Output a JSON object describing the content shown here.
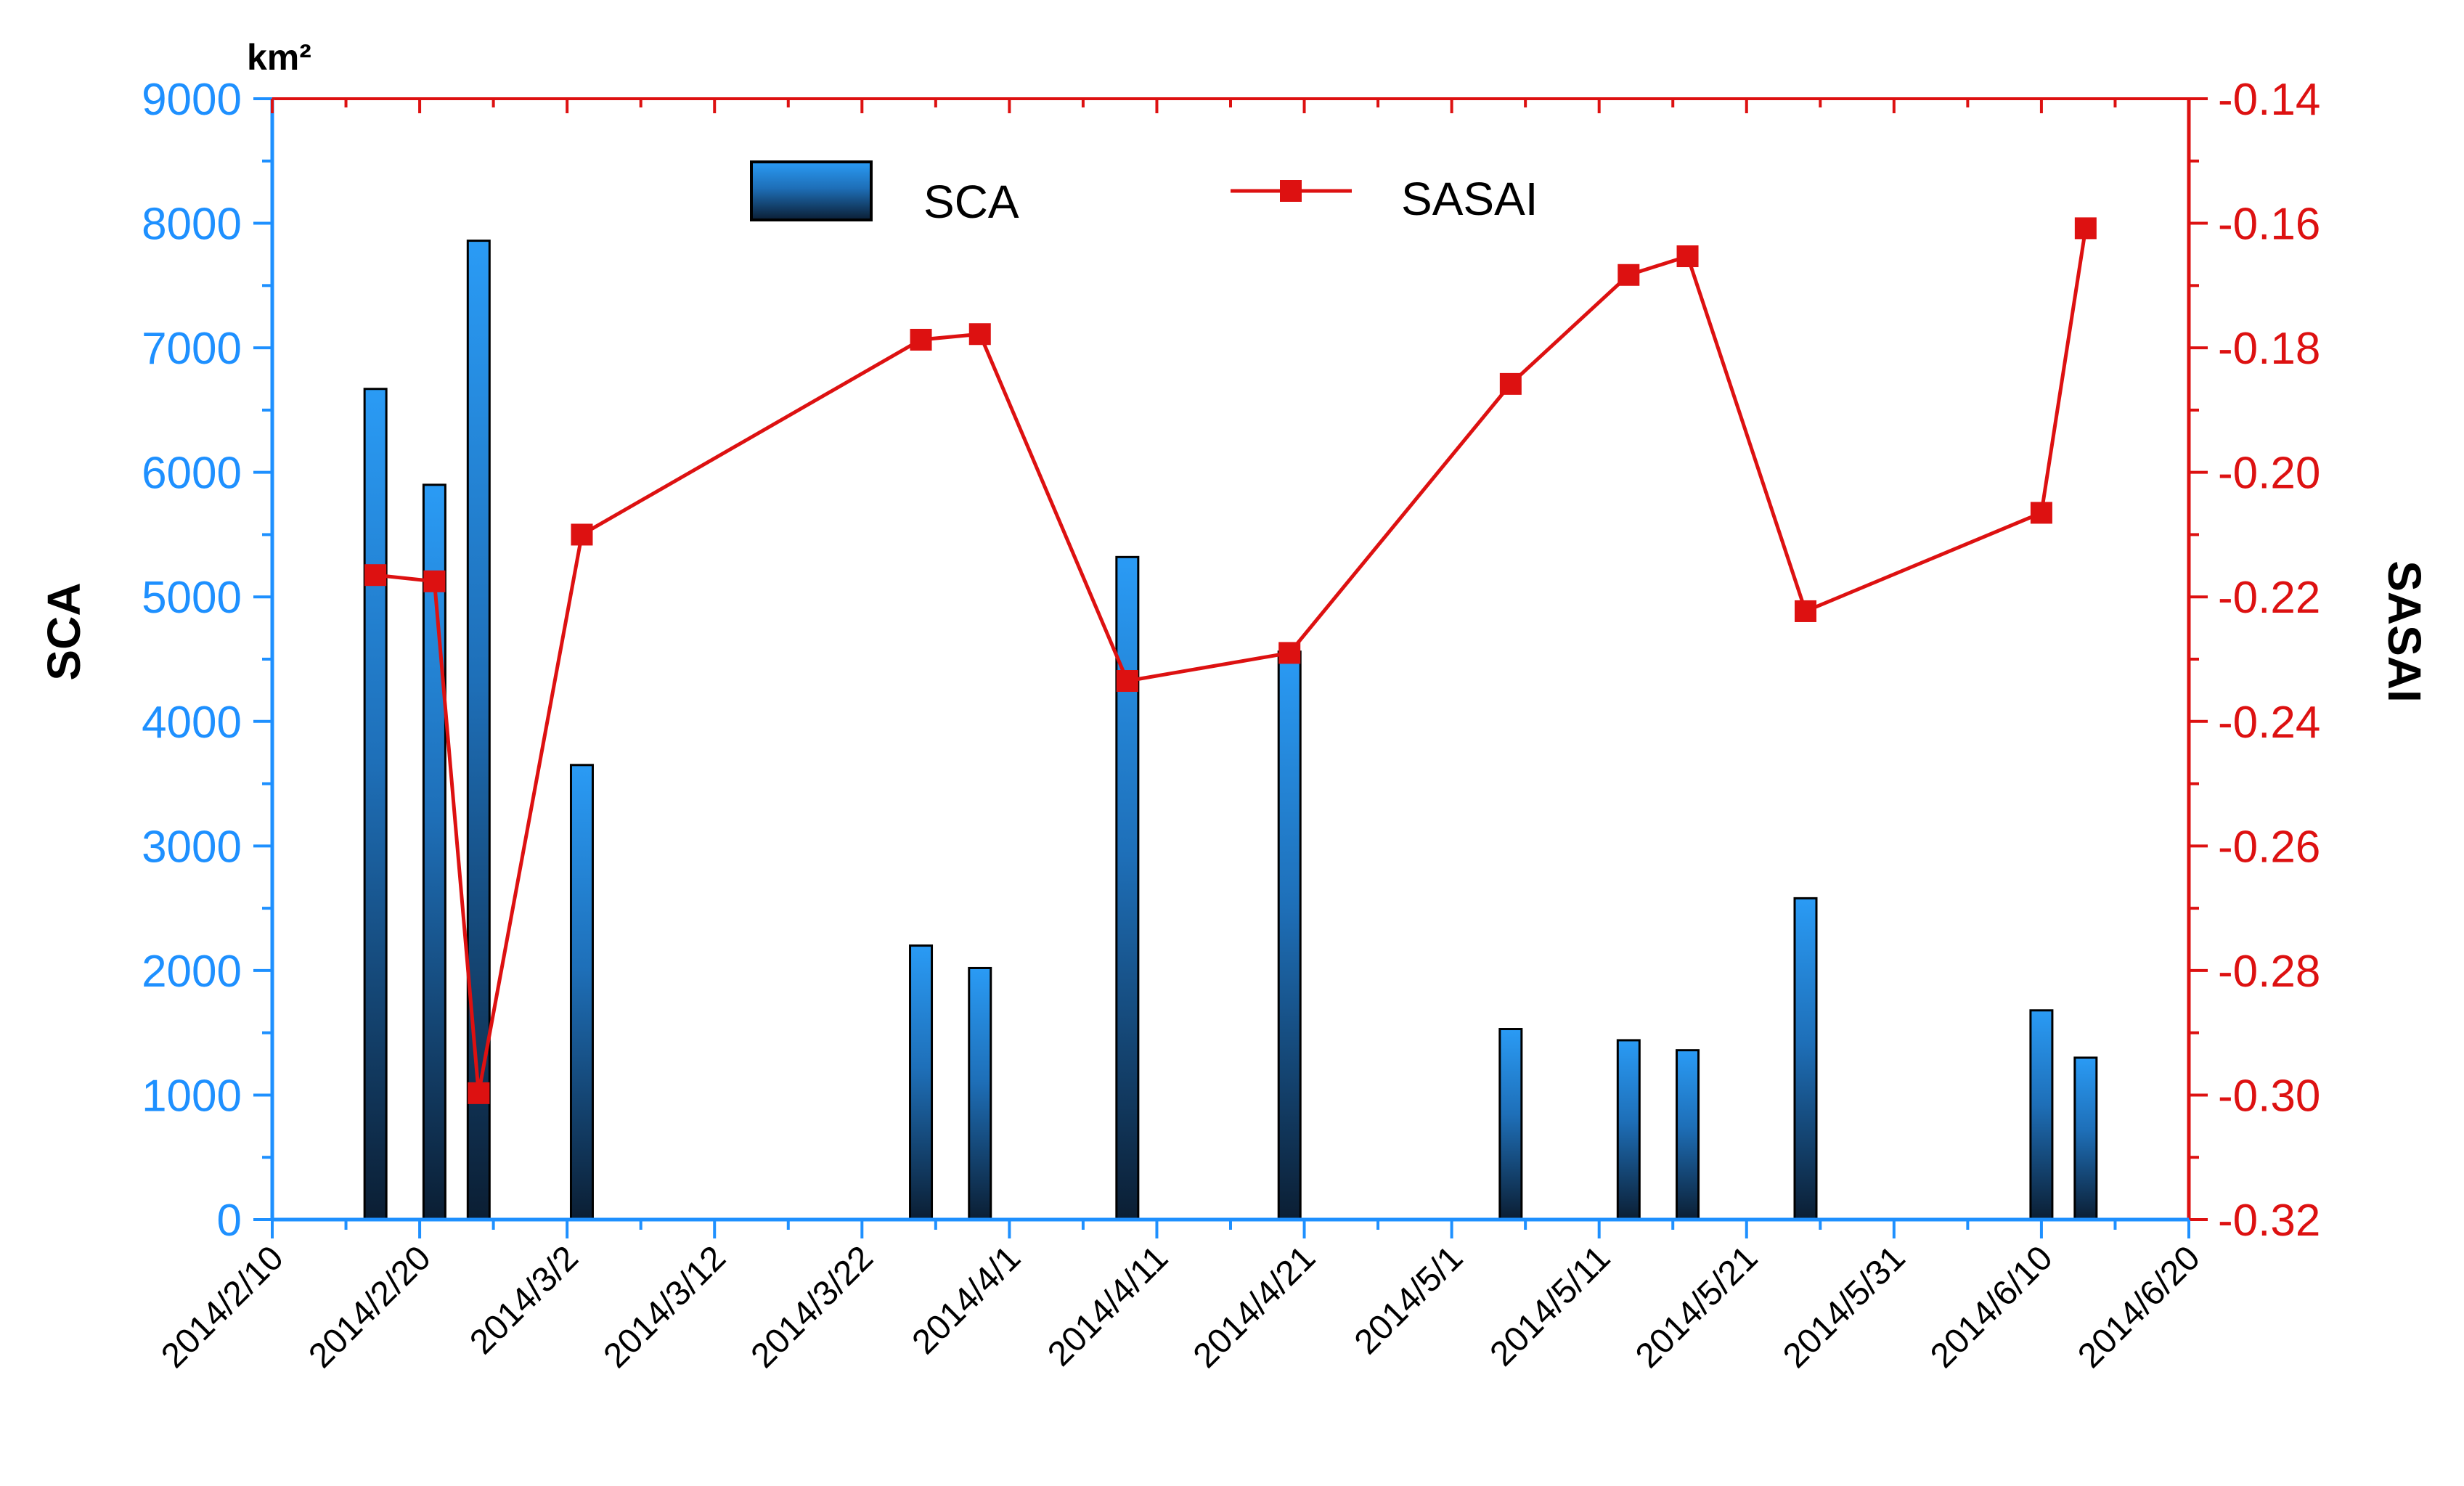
{
  "chart_data": {
    "type": "bar+line",
    "x_axis": {
      "start": "2014-02-10",
      "end": "2014-06-20",
      "tick_labels": [
        "2014/2/10",
        "2014/2/20",
        "2014/3/2",
        "2014/3/12",
        "2014/3/22",
        "2014/4/1",
        "2014/4/11",
        "2014/4/21",
        "2014/5/1",
        "2014/5/11",
        "2014/5/21",
        "2014/5/31",
        "2014/6/10",
        "2014/6/20"
      ]
    },
    "left_axis": {
      "label": "SCA",
      "unit": "km²",
      "ylim": [
        0,
        9000
      ],
      "ticks": [
        "0",
        "1000",
        "2000",
        "3000",
        "4000",
        "5000",
        "6000",
        "7000",
        "8000",
        "9000"
      ],
      "color": "#1E90FF"
    },
    "right_axis": {
      "label": "SASAI",
      "ylim": [
        -0.32,
        -0.14
      ],
      "ticks": [
        "-0.32",
        "-0.30",
        "-0.28",
        "-0.26",
        "-0.24",
        "-0.22",
        "-0.20",
        "-0.18",
        "-0.16",
        "-0.14"
      ],
      "color": "#DD1111"
    },
    "series": [
      {
        "name": "SCA",
        "type": "bar",
        "axis": "left",
        "points": [
          {
            "date": "2014-02-17",
            "value": 6670
          },
          {
            "date": "2014-02-21",
            "value": 5900
          },
          {
            "date": "2014-02-24",
            "value": 7860
          },
          {
            "date": "2014-03-03",
            "value": 3650
          },
          {
            "date": "2014-03-26",
            "value": 2200
          },
          {
            "date": "2014-03-30",
            "value": 2020
          },
          {
            "date": "2014-04-09",
            "value": 5320
          },
          {
            "date": "2014-04-20",
            "value": 4560
          },
          {
            "date": "2014-05-05",
            "value": 1530
          },
          {
            "date": "2014-05-13",
            "value": 1440
          },
          {
            "date": "2014-05-17",
            "value": 1360
          },
          {
            "date": "2014-05-25",
            "value": 2580
          },
          {
            "date": "2014-06-10",
            "value": 1680
          },
          {
            "date": "2014-06-13",
            "value": 1300
          }
        ]
      },
      {
        "name": "SASAI",
        "type": "line",
        "axis": "right",
        "points": [
          {
            "date": "2014-02-17",
            "value": -0.2165
          },
          {
            "date": "2014-02-21",
            "value": -0.2175
          },
          {
            "date": "2014-02-24",
            "value": -0.2997
          },
          {
            "date": "2014-03-03",
            "value": -0.21
          },
          {
            "date": "2014-03-26",
            "value": -0.1787
          },
          {
            "date": "2014-03-30",
            "value": -0.1778
          },
          {
            "date": "2014-04-09",
            "value": -0.2335
          },
          {
            "date": "2014-04-20",
            "value": -0.229
          },
          {
            "date": "2014-05-05",
            "value": -0.1858
          },
          {
            "date": "2014-05-13",
            "value": -0.1683
          },
          {
            "date": "2014-05-17",
            "value": -0.1653
          },
          {
            "date": "2014-05-25",
            "value": -0.2223
          },
          {
            "date": "2014-06-10",
            "value": -0.2065
          },
          {
            "date": "2014-06-13",
            "value": -0.1608
          }
        ]
      }
    ],
    "legend": {
      "placement": "top-center",
      "entries": [
        "SCA",
        "SASAI"
      ]
    }
  }
}
